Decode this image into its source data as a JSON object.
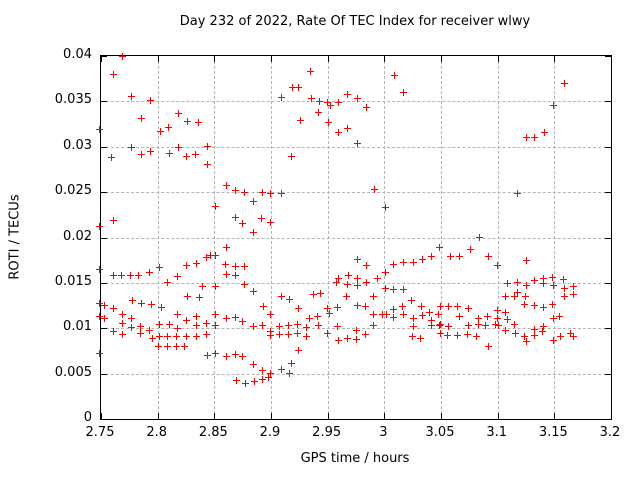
{
  "chart_data": {
    "type": "scatter",
    "title": "Day 232 of 2022, Rate Of TEC Index for receiver wlwy",
    "xlabel": "GPS time / hours",
    "ylabel": "ROTI / TECUs",
    "xlim": [
      2.75,
      3.2
    ],
    "ylim": [
      0,
      0.04
    ],
    "x_ticks": [
      "2.75",
      "2.8",
      "2.85",
      "2.9",
      "2.95",
      "3",
      "3.05",
      "3.1",
      "3.15",
      "3.2"
    ],
    "y_ticks": [
      "0",
      "0.005",
      "0.01",
      "0.015",
      "0.02",
      "0.025",
      "0.03",
      "0.035",
      "0.04"
    ],
    "grid": true,
    "legend_position": "none",
    "marker": "plus",
    "marker_color": "#ff0000",
    "grid_color": "#b4b4b4",
    "border_color": "#000000",
    "background_color": "#ffffff",
    "series": [
      {
        "name": "ROTI",
        "points": [
          [
            2.77,
            0.0398
          ],
          [
            2.762,
            0.0378
          ],
          [
            2.778,
            0.0354
          ],
          [
            2.795,
            0.0349
          ],
          [
            2.787,
            0.0329
          ],
          [
            2.82,
            0.0335
          ],
          [
            2.828,
            0.0326
          ],
          [
            2.837,
            0.0325
          ],
          [
            2.804,
            0.0315
          ],
          [
            2.811,
            0.032
          ],
          [
            2.75,
            0.0317
          ],
          [
            2.778,
            0.0298
          ],
          [
            2.761,
            0.0287
          ],
          [
            2.787,
            0.029
          ],
          [
            2.795,
            0.0293
          ],
          [
            2.812,
            0.0291
          ],
          [
            2.82,
            0.0298
          ],
          [
            2.827,
            0.0288
          ],
          [
            2.835,
            0.029
          ],
          [
            2.845,
            0.0299
          ],
          [
            2.845,
            0.0279
          ],
          [
            2.936,
            0.0381
          ],
          [
            2.92,
            0.0364
          ],
          [
            2.926,
            0.0364
          ],
          [
            2.911,
            0.0353
          ],
          [
            2.937,
            0.0351
          ],
          [
            2.944,
            0.0348
          ],
          [
            2.951,
            0.0347
          ],
          [
            2.954,
            0.0344
          ],
          [
            2.961,
            0.0347
          ],
          [
            2.969,
            0.0356
          ],
          [
            2.978,
            0.0351
          ],
          [
            2.943,
            0.0336
          ],
          [
            2.986,
            0.0342
          ],
          [
            2.927,
            0.0327
          ],
          [
            2.952,
            0.0325
          ],
          [
            2.961,
            0.0314
          ],
          [
            2.969,
            0.0318
          ],
          [
            2.978,
            0.0302
          ],
          [
            2.919,
            0.0288
          ],
          [
            3.01,
            0.0377
          ],
          [
            3.018,
            0.0358
          ],
          [
            3.16,
            0.0368
          ],
          [
            3.151,
            0.0344
          ],
          [
            3.143,
            0.0314
          ],
          [
            3.134,
            0.0308
          ],
          [
            3.127,
            0.0309
          ],
          [
            2.862,
            0.0256
          ],
          [
            2.852,
            0.0232
          ],
          [
            2.87,
            0.025
          ],
          [
            2.878,
            0.0248
          ],
          [
            2.886,
            0.0238
          ],
          [
            2.894,
            0.0248
          ],
          [
            2.901,
            0.0247
          ],
          [
            2.87,
            0.022
          ],
          [
            2.876,
            0.0214
          ],
          [
            2.893,
            0.0219
          ],
          [
            2.886,
            0.0204
          ],
          [
            2.762,
            0.0217
          ],
          [
            2.75,
            0.0211
          ],
          [
            2.862,
            0.0187
          ],
          [
            2.852,
            0.0179
          ],
          [
            2.861,
            0.0169
          ],
          [
            2.87,
            0.0166
          ],
          [
            2.878,
            0.0166
          ],
          [
            2.862,
            0.0158
          ],
          [
            2.87,
            0.0156
          ],
          [
            2.827,
            0.0168
          ],
          [
            2.836,
            0.017
          ],
          [
            2.844,
            0.0176
          ],
          [
            2.848,
            0.0179
          ],
          [
            2.803,
            0.0165
          ],
          [
            2.794,
            0.016
          ],
          [
            2.762,
            0.0156
          ],
          [
            2.75,
            0.0163
          ],
          [
            2.769,
            0.0156
          ],
          [
            2.777,
            0.0157
          ],
          [
            2.784,
            0.0156
          ],
          [
            2.81,
            0.0149
          ],
          [
            2.819,
            0.0155
          ],
          [
            2.841,
            0.0144
          ],
          [
            2.852,
            0.0144
          ],
          [
            2.878,
            0.0147
          ],
          [
            2.886,
            0.0139
          ],
          [
            2.911,
            0.0247
          ],
          [
            2.993,
            0.0251
          ],
          [
            3.002,
            0.0231
          ],
          [
            2.901,
            0.0215
          ],
          [
            2.978,
            0.0174
          ],
          [
            2.986,
            0.0167
          ],
          [
            3.009,
            0.0169
          ],
          [
            3.018,
            0.0171
          ],
          [
            3.027,
            0.0171
          ],
          [
            3.035,
            0.0174
          ],
          [
            3.043,
            0.0177
          ],
          [
            3.05,
            0.0187
          ],
          [
            2.978,
            0.0153
          ],
          [
            2.97,
            0.0156
          ],
          [
            2.961,
            0.0153
          ],
          [
            2.959,
            0.0149
          ],
          [
            2.969,
            0.0147
          ],
          [
            2.978,
            0.0146
          ],
          [
            2.986,
            0.0149
          ],
          [
            2.995,
            0.0153
          ],
          [
            3.002,
            0.016
          ],
          [
            3.002,
            0.0142
          ],
          [
            3.009,
            0.0141
          ],
          [
            3.018,
            0.0141
          ],
          [
            2.945,
            0.0137
          ],
          [
            2.939,
            0.0136
          ],
          [
            3.119,
            0.0247
          ],
          [
            3.085,
            0.0198
          ],
          [
            3.06,
            0.0177
          ],
          [
            3.068,
            0.0177
          ],
          [
            3.077,
            0.0185
          ],
          [
            3.093,
            0.0177
          ],
          [
            3.101,
            0.0168
          ],
          [
            3.127,
            0.0173
          ],
          [
            3.11,
            0.0148
          ],
          [
            3.119,
            0.0149
          ],
          [
            3.119,
            0.0138
          ],
          [
            3.127,
            0.0145
          ],
          [
            3.134,
            0.0151
          ],
          [
            3.142,
            0.0153
          ],
          [
            3.142,
            0.0148
          ],
          [
            3.15,
            0.0154
          ],
          [
            3.151,
            0.0145
          ],
          [
            3.159,
            0.0152
          ],
          [
            3.16,
            0.0142
          ],
          [
            3.168,
            0.0144
          ],
          [
            3.168,
            0.0136
          ],
          [
            2.754,
            0.0123
          ],
          [
            2.75,
            0.0126
          ],
          [
            2.762,
            0.012
          ],
          [
            2.75,
            0.0111
          ],
          [
            2.754,
            0.0109
          ],
          [
            2.779,
            0.0129
          ],
          [
            2.787,
            0.0126
          ],
          [
            2.796,
            0.0125
          ],
          [
            2.805,
            0.0121
          ],
          [
            2.828,
            0.0133
          ],
          [
            2.838,
            0.0132
          ],
          [
            2.77,
            0.0113
          ],
          [
            2.778,
            0.0109
          ],
          [
            2.762,
            0.0095
          ],
          [
            2.77,
            0.0091
          ],
          [
            2.77,
            0.0104
          ],
          [
            2.778,
            0.0099
          ],
          [
            2.786,
            0.01
          ],
          [
            2.786,
            0.0093
          ],
          [
            2.794,
            0.0096
          ],
          [
            2.797,
            0.0087
          ],
          [
            2.803,
            0.0102
          ],
          [
            2.803,
            0.0089
          ],
          [
            2.812,
            0.0102
          ],
          [
            2.81,
            0.0089
          ],
          [
            2.819,
            0.0114
          ],
          [
            2.827,
            0.0107
          ],
          [
            2.819,
            0.0098
          ],
          [
            2.818,
            0.0089
          ],
          [
            2.827,
            0.0089
          ],
          [
            2.802,
            0.0078
          ],
          [
            2.81,
            0.0078
          ],
          [
            2.818,
            0.0078
          ],
          [
            2.825,
            0.0078
          ],
          [
            2.75,
            0.0071
          ],
          [
            2.836,
            0.0111
          ],
          [
            2.836,
            0.0101
          ],
          [
            2.844,
            0.0104
          ],
          [
            2.852,
            0.0114
          ],
          [
            2.852,
            0.0101
          ],
          [
            2.836,
            0.0089
          ],
          [
            2.844,
            0.0091
          ],
          [
            2.862,
            0.0109
          ],
          [
            2.87,
            0.011
          ],
          [
            2.876,
            0.0106
          ],
          [
            2.886,
            0.01
          ],
          [
            2.894,
            0.0101
          ],
          [
            2.895,
            0.0122
          ],
          [
            2.852,
            0.0071
          ],
          [
            2.862,
            0.0067
          ],
          [
            2.87,
            0.0069
          ],
          [
            2.876,
            0.0067
          ],
          [
            2.886,
            0.0058
          ],
          [
            2.894,
            0.0052
          ],
          [
            2.871,
            0.0041
          ],
          [
            2.879,
            0.0038
          ],
          [
            2.887,
            0.004
          ],
          [
            2.894,
            0.0042
          ],
          [
            2.899,
            0.0044
          ],
          [
            2.845,
            0.0068
          ],
          [
            2.911,
            0.0133
          ],
          [
            2.918,
            0.013
          ],
          [
            2.926,
            0.012
          ],
          [
            2.901,
            0.0114
          ],
          [
            2.901,
            0.0095
          ],
          [
            2.901,
            0.009
          ],
          [
            2.909,
            0.01
          ],
          [
            2.909,
            0.0091
          ],
          [
            2.917,
            0.0101
          ],
          [
            2.917,
            0.0091
          ],
          [
            2.925,
            0.0103
          ],
          [
            2.925,
            0.0093
          ],
          [
            2.933,
            0.0099
          ],
          [
            2.933,
            0.0089
          ],
          [
            2.935,
            0.0109
          ],
          [
            2.942,
            0.0111
          ],
          [
            2.943,
            0.0101
          ],
          [
            2.951,
            0.012
          ],
          [
            2.953,
            0.0115
          ],
          [
            2.96,
            0.0121
          ],
          [
            2.951,
            0.0093
          ],
          [
            2.96,
            0.01
          ],
          [
            2.961,
            0.0085
          ],
          [
            2.969,
            0.0087
          ],
          [
            2.977,
            0.0086
          ],
          [
            2.968,
            0.0133
          ],
          [
            2.977,
            0.0096
          ],
          [
            2.978,
            0.0123
          ],
          [
            2.985,
            0.0122
          ],
          [
            2.992,
            0.0133
          ],
          [
            2.992,
            0.0114
          ],
          [
            2.985,
            0.0091
          ],
          [
            2.992,
            0.0101
          ],
          [
            3.0,
            0.0113
          ],
          [
            3.003,
            0.0113
          ],
          [
            3.009,
            0.0119
          ],
          [
            3.009,
            0.011
          ],
          [
            3.017,
            0.0122
          ],
          [
            3.018,
            0.0113
          ],
          [
            3.025,
            0.0129
          ],
          [
            3.027,
            0.0109
          ],
          [
            3.027,
            0.01
          ],
          [
            3.034,
            0.0122
          ],
          [
            3.035,
            0.0112
          ],
          [
            3.041,
            0.0116
          ],
          [
            3.043,
            0.0107
          ],
          [
            3.043,
            0.0101
          ],
          [
            3.049,
            0.0114
          ],
          [
            3.05,
            0.0101
          ],
          [
            3.026,
            0.0089
          ],
          [
            3.033,
            0.0087
          ],
          [
            2.919,
            0.0059
          ],
          [
            2.911,
            0.0053
          ],
          [
            2.918,
            0.0048
          ],
          [
            2.901,
            0.0049
          ],
          [
            2.926,
            0.0074
          ],
          [
            3.051,
            0.0122
          ],
          [
            3.058,
            0.0122
          ],
          [
            3.066,
            0.0122
          ],
          [
            3.076,
            0.012
          ],
          [
            3.068,
            0.0111
          ],
          [
            3.051,
            0.0103
          ],
          [
            3.058,
            0.01
          ],
          [
            3.051,
            0.0093
          ],
          [
            3.057,
            0.009
          ],
          [
            3.066,
            0.009
          ],
          [
            3.075,
            0.0091
          ],
          [
            3.076,
            0.0101
          ],
          [
            3.084,
            0.0103
          ],
          [
            3.084,
            0.0109
          ],
          [
            3.083,
            0.0089
          ],
          [
            3.091,
            0.0101
          ],
          [
            3.092,
            0.0111
          ],
          [
            3.093,
            0.0078
          ],
          [
            3.099,
            0.0103
          ],
          [
            3.101,
            0.0118
          ],
          [
            3.101,
            0.0109
          ],
          [
            3.102,
            0.0101
          ],
          [
            3.108,
            0.0116
          ],
          [
            3.11,
            0.0108
          ],
          [
            3.108,
            0.0096
          ],
          [
            3.116,
            0.0102
          ],
          [
            3.117,
            0.0093
          ],
          [
            3.125,
            0.0089
          ],
          [
            3.127,
            0.0084
          ],
          [
            3.134,
            0.009
          ],
          [
            3.134,
            0.0097
          ],
          [
            3.141,
            0.0095
          ],
          [
            3.142,
            0.01
          ],
          [
            3.125,
            0.0125
          ],
          [
            3.134,
            0.0123
          ],
          [
            3.142,
            0.0121
          ],
          [
            3.15,
            0.0124
          ],
          [
            3.116,
            0.0133
          ],
          [
            3.126,
            0.0133
          ],
          [
            3.151,
            0.0109
          ],
          [
            3.156,
            0.0111
          ],
          [
            3.151,
            0.0085
          ],
          [
            3.157,
            0.0089
          ],
          [
            3.166,
            0.0093
          ],
          [
            3.168,
            0.0089
          ],
          [
            3.16,
            0.0133
          ],
          [
            3.108,
            0.0133
          ]
        ]
      }
    ]
  }
}
